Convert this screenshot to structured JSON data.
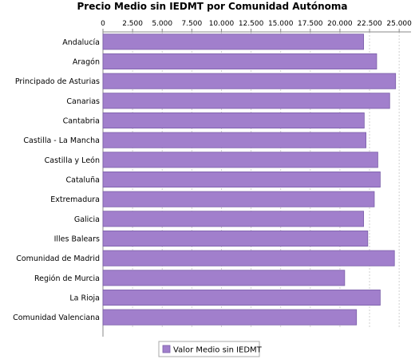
{
  "chart_data": {
    "type": "bar",
    "orientation": "horizontal",
    "title": "Precio Medio sin IEDMT por Comunidad Autónoma",
    "xlabel": "",
    "ylabel": "",
    "xlim": [
      0,
      26000
    ],
    "xticks": [
      0,
      2500,
      5000,
      7500,
      10000,
      12500,
      15000,
      17500,
      20000,
      22500,
      25000
    ],
    "xtick_labels": [
      "0",
      "2.500",
      "5.000",
      "7.500",
      "10.000",
      "12.500",
      "15.000",
      "17.500",
      "20.000",
      "22.500",
      "25.000"
    ],
    "axis_position": "top",
    "grid": "vertical dashed",
    "categories": [
      "Andalucía",
      "Aragón",
      "Principado de Asturias",
      "Canarias",
      "Cantabria",
      "Castilla - La Mancha",
      "Castilla y León",
      "Cataluña",
      "Extremadura",
      "Galicia",
      "Illes Balears",
      "Comunidad de Madrid",
      "Región de Murcia",
      "La Rioja",
      "Comunidad Valenciana"
    ],
    "series": [
      {
        "name": "Valor Medio sin IEDMT",
        "color": "#a17fcc",
        "values": [
          22000,
          23100,
          24700,
          24200,
          22050,
          22200,
          23200,
          23400,
          22900,
          22000,
          22350,
          24600,
          20400,
          23400,
          21400
        ]
      }
    ],
    "legend": {
      "position": "bottom-center",
      "label": "Valor Medio sin IEDMT"
    }
  }
}
